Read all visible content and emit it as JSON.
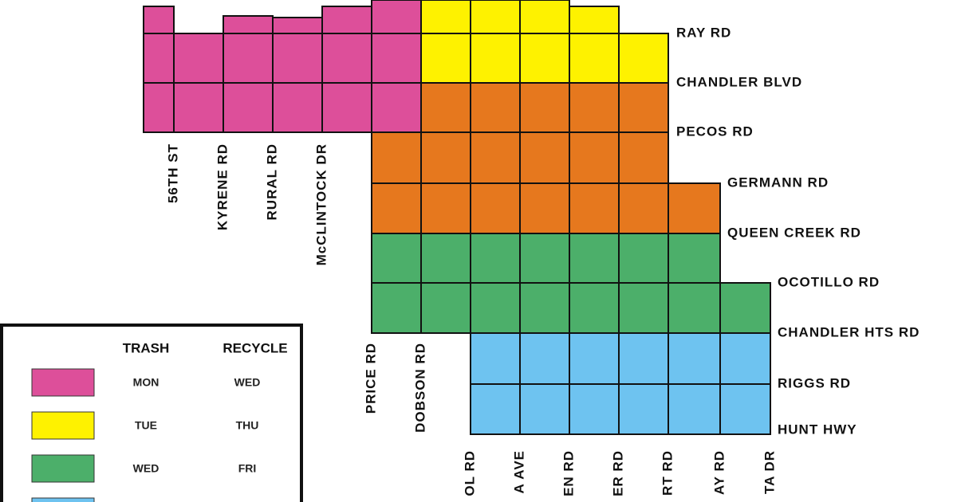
{
  "roads_east_west": [
    "RAY RD",
    "CHANDLER BLVD",
    "PECOS RD",
    "GERMANN RD",
    "QUEEN CREEK RD",
    "OCOTILLO RD",
    "CHANDLER HTS RD",
    "RIGGS RD",
    "HUNT HWY"
  ],
  "roads_north_south": [
    "56TH ST",
    "KYRENE RD",
    "RURAL RD",
    "McCLINTOCK DR",
    "PRICE RD",
    "DOBSON RD",
    "OL RD",
    "A AVE",
    "EN RD",
    "ER RD",
    "RT RD",
    "AY RD",
    "TA DR"
  ],
  "legend": {
    "headers": [
      "TRASH",
      "RECYCLE"
    ],
    "rows": [
      {
        "trash": "MON",
        "recycle": "WED",
        "color": "#dd4f9a"
      },
      {
        "trash": "TUE",
        "recycle": "THU",
        "color": "#fef200"
      },
      {
        "trash": "WED",
        "recycle": "FRI",
        "color": "#4caf6a"
      },
      {
        "color": "#6ec3f0"
      }
    ]
  },
  "orange_zone_color": "#e6781e"
}
